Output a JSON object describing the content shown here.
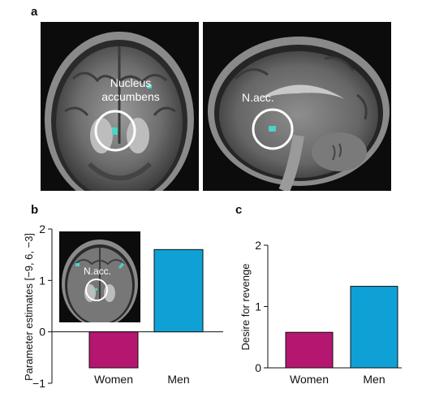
{
  "panels": {
    "a": {
      "letter": "a",
      "coronal_label": "Nucleus\naccumbens",
      "sagittal_label": "N.acc."
    },
    "b": {
      "letter": "b",
      "inset_label": "N.acc."
    },
    "c": {
      "letter": "c"
    }
  },
  "colors": {
    "women": "#b5166f",
    "men": "#0fa0d6",
    "activation": "#4fd1c5"
  },
  "chart_data": [
    {
      "type": "bar",
      "panel": "b",
      "categories": [
        "Women",
        "Men"
      ],
      "values": [
        -0.7,
        1.6
      ],
      "ylabel": "Parameter estimates [−9, 6, −3]",
      "xlabel": "",
      "ylim": [
        -1,
        2
      ],
      "yticks": [
        -1,
        0,
        1,
        2
      ],
      "ytick_labels": [
        "−1",
        "0",
        "1",
        "2"
      ],
      "grid": false,
      "legend": "none"
    },
    {
      "type": "bar",
      "panel": "c",
      "categories": [
        "Women",
        "Men"
      ],
      "values": [
        0.58,
        1.33
      ],
      "ylabel": "Desire for revenge",
      "xlabel": "",
      "ylim": [
        0,
        2
      ],
      "yticks": [
        0,
        1,
        2
      ],
      "ytick_labels": [
        "0",
        "1",
        "2"
      ],
      "grid": false,
      "legend": "none"
    }
  ]
}
